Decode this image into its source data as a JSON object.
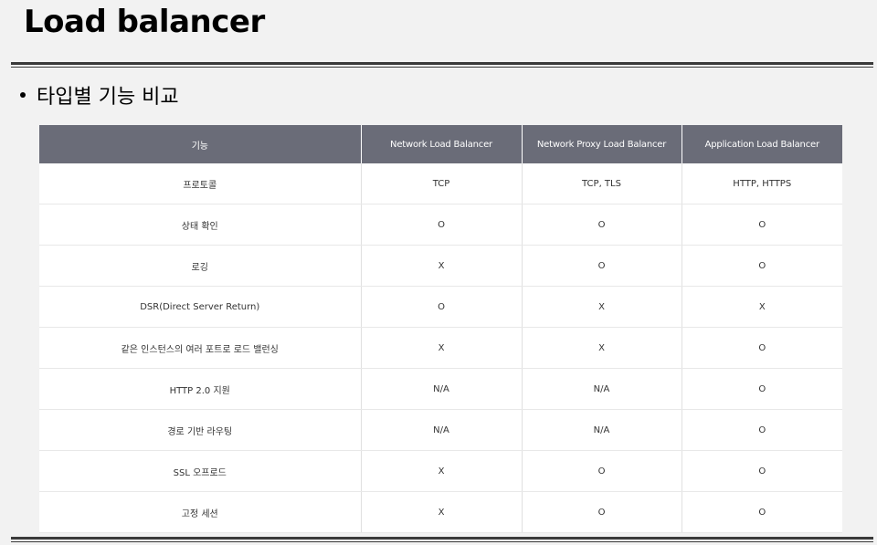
{
  "title": "Load balancer",
  "bullet": "타입별 기능 비교",
  "table": {
    "headers": [
      "기능",
      "Network Load Balancer",
      "Network Proxy Load Balancer",
      "Application Load Balancer"
    ],
    "rows": [
      [
        "프로토콜",
        "TCP",
        "TCP, TLS",
        "HTTP, HTTPS"
      ],
      [
        "상태 확인",
        "O",
        "O",
        "O"
      ],
      [
        "로깅",
        "X",
        "O",
        "O"
      ],
      [
        "DSR(Direct Server Return)",
        "O",
        "X",
        "X"
      ],
      [
        "같은 인스턴스의 여러 포트로 로드 밸런싱",
        "X",
        "X",
        "O"
      ],
      [
        "HTTP 2.0 지원",
        "N/A",
        "N/A",
        "O"
      ],
      [
        "경로 기반 라우팅",
        "N/A",
        "N/A",
        "O"
      ],
      [
        "SSL 오프로드",
        "X",
        "O",
        "O"
      ],
      [
        "고정 세션",
        "X",
        "O",
        "O"
      ]
    ]
  }
}
